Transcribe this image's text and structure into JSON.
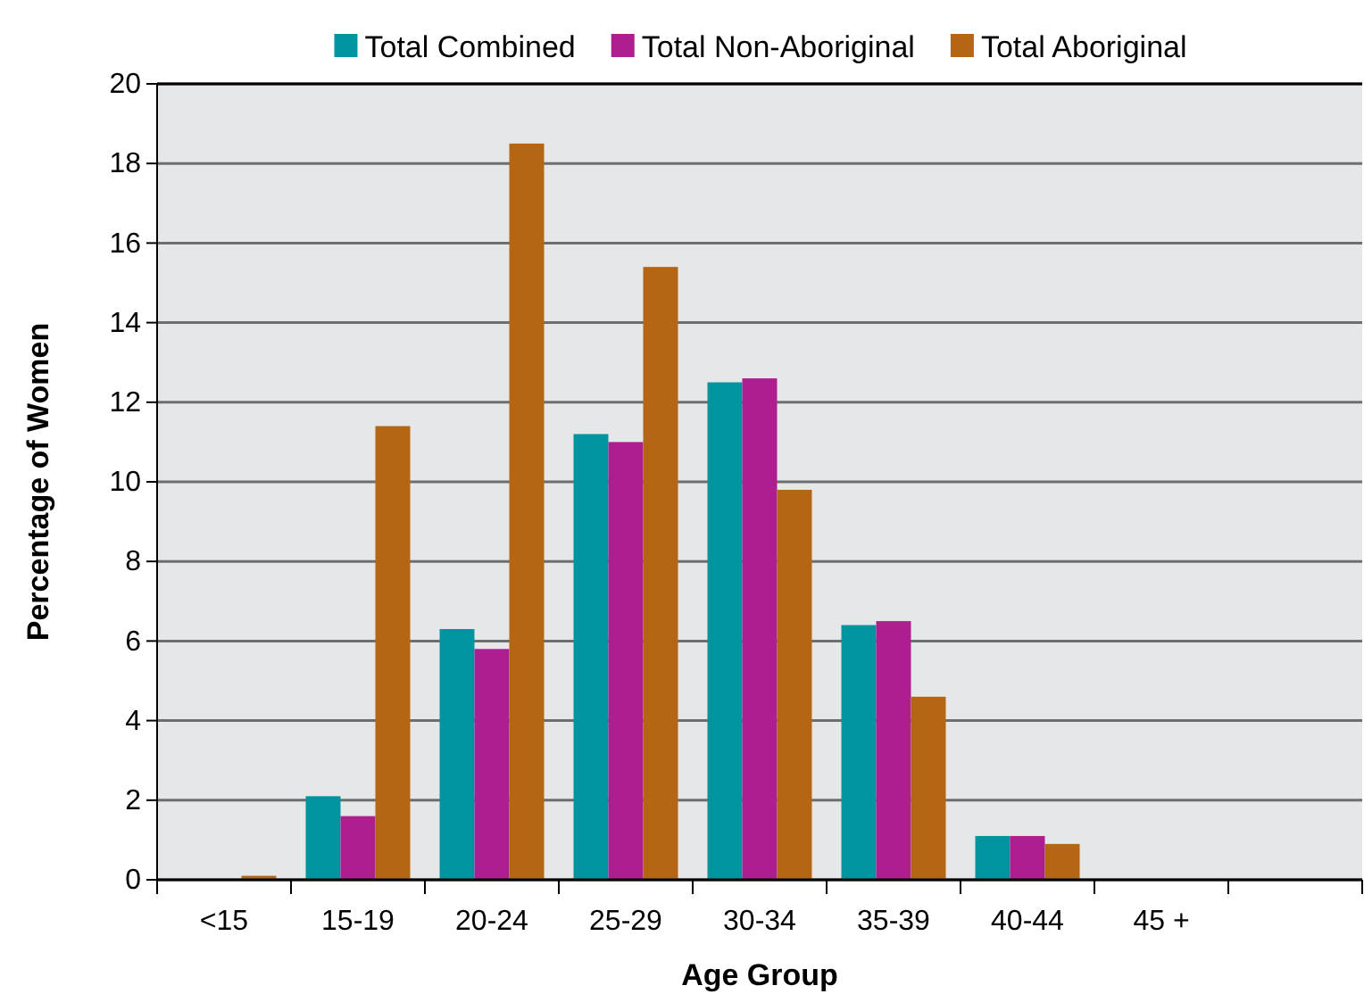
{
  "chart_data": {
    "type": "bar",
    "xlabel": "Age Group",
    "ylabel": "Percentage of Women",
    "categories": [
      "<15",
      "15-19",
      "20-24",
      "25-29",
      "30-34",
      "35-39",
      "40-44",
      "45 +",
      null
    ],
    "series": [
      {
        "name": "Total Combined",
        "color": "#0093a0",
        "values": [
          0,
          2.1,
          6.3,
          11.2,
          12.5,
          6.4,
          1.1,
          0,
          null
        ]
      },
      {
        "name": "Total Non-Aboriginal",
        "color": "#ad1f8e",
        "values": [
          0,
          1.6,
          5.8,
          11.0,
          12.6,
          6.5,
          1.1,
          0,
          null
        ]
      },
      {
        "name": "Total Aboriginal",
        "color": "#b56614",
        "values": [
          0.1,
          11.4,
          18.5,
          15.4,
          9.8,
          4.6,
          0.9,
          0,
          null
        ]
      }
    ],
    "ylim": [
      0,
      20
    ],
    "yticks": [
      0,
      2,
      4,
      6,
      8,
      10,
      12,
      14,
      16,
      18,
      20
    ],
    "grid": "y",
    "legend": "top"
  }
}
